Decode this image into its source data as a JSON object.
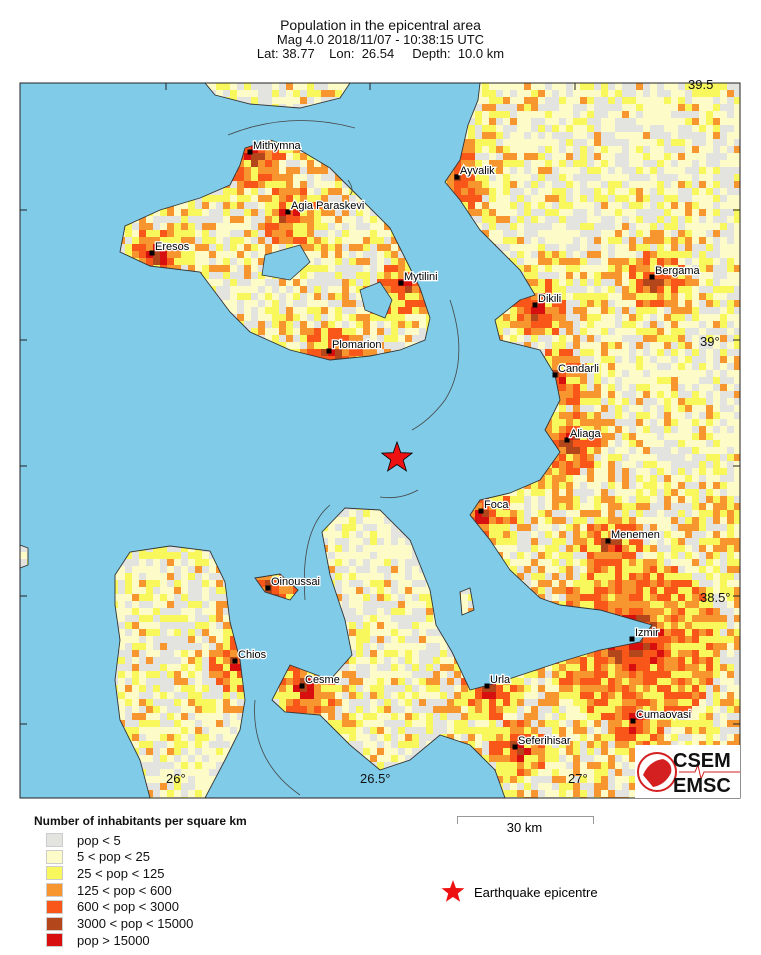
{
  "header": {
    "title": "Population in the epicentral area",
    "line2": "Mag 4.0  2018/11/07 - 10:38:15 UTC",
    "line3": "Lat: 38.77    Lon:  26.54     Depth:  10.0 km"
  },
  "map": {
    "colors": {
      "sea": "#7fcbe8",
      "coast": "#333333",
      "border": "#222222"
    },
    "lat_labels": [
      "39.5",
      "39°",
      "38.5°"
    ],
    "lon_labels": [
      "26°",
      "26.5°",
      "27°"
    ],
    "cities": [
      "Mithymna",
      "Agia Paraskevi",
      "Eresos",
      "Mytilini",
      "Plomarion",
      "Ayvalik",
      "Dikili",
      "Bergama",
      "Candarli",
      "Aliaga",
      "Foca",
      "Menemen",
      "Oinoussai",
      "Chios",
      "Cesme",
      "Izmir",
      "Urla",
      "Cumaovasi",
      "Seferihisar"
    ],
    "epicentre": {
      "lat": 38.77,
      "lon": 26.54,
      "color": "#ee1111"
    }
  },
  "logo": {
    "line1": "CSEM",
    "line2": "EMSC",
    "color": "#d42020"
  },
  "legend": {
    "title": "Number of inhabitants per square km",
    "items": [
      {
        "label": "pop < 5",
        "color": "#e3e3e0"
      },
      {
        "label": "5 < pop < 25",
        "color": "#fdfbc8"
      },
      {
        "label": "25 < pop < 125",
        "color": "#f8f85c"
      },
      {
        "label": "125 < pop < 600",
        "color": "#f7962f"
      },
      {
        "label": "600 < pop < 3000",
        "color": "#f9561a"
      },
      {
        "label": "3000 < pop < 15000",
        "color": "#b4461c"
      },
      {
        "label": "pop > 15000",
        "color": "#d7100f"
      }
    ],
    "scale_label": "30 km",
    "epicentre_label": "Earthquake epicentre"
  }
}
